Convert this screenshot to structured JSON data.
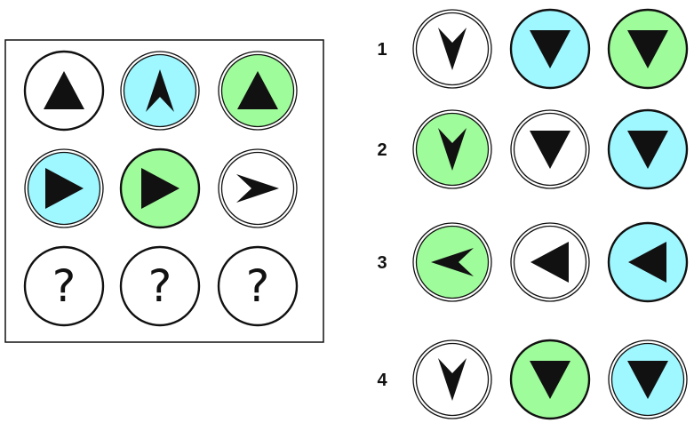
{
  "colors": {
    "white": "#ffffff",
    "cyan": "#9ff7ff",
    "green": "#9ffc9b",
    "ink": "#111111"
  },
  "matrix": {
    "rows": [
      [
        {
          "fill": "cyan-none",
          "color": "white",
          "border": "single",
          "icon": "triangle",
          "dir": "up"
        },
        {
          "color": "cyan",
          "border": "double",
          "icon": "chevron",
          "dir": "up"
        },
        {
          "color": "green",
          "border": "double",
          "icon": "triangle",
          "dir": "up"
        }
      ],
      [
        {
          "color": "cyan",
          "border": "double",
          "icon": "triangle",
          "dir": "right"
        },
        {
          "color": "green",
          "border": "single",
          "icon": "triangle",
          "dir": "right"
        },
        {
          "color": "white",
          "border": "double",
          "icon": "chevron",
          "dir": "right"
        }
      ],
      [
        {
          "color": "white",
          "border": "single",
          "icon": "question",
          "dir": "none"
        },
        {
          "color": "white",
          "border": "single",
          "icon": "question",
          "dir": "none"
        },
        {
          "color": "white",
          "border": "single",
          "icon": "question",
          "dir": "none"
        }
      ]
    ],
    "question_mark": "?"
  },
  "options": [
    {
      "label": "1",
      "cells": [
        {
          "color": "white",
          "border": "double",
          "icon": "chevron",
          "dir": "down"
        },
        {
          "color": "cyan",
          "border": "single",
          "icon": "triangle",
          "dir": "down"
        },
        {
          "color": "green",
          "border": "single",
          "icon": "triangle",
          "dir": "down"
        }
      ]
    },
    {
      "label": "2",
      "cells": [
        {
          "color": "green",
          "border": "double",
          "icon": "chevron",
          "dir": "down"
        },
        {
          "color": "white",
          "border": "double",
          "icon": "triangle",
          "dir": "down"
        },
        {
          "color": "cyan",
          "border": "single",
          "icon": "triangle",
          "dir": "down"
        }
      ]
    },
    {
      "label": "3",
      "cells": [
        {
          "color": "green",
          "border": "double",
          "icon": "chevron",
          "dir": "left"
        },
        {
          "color": "white",
          "border": "double",
          "icon": "triangle",
          "dir": "left"
        },
        {
          "color": "cyan",
          "border": "single",
          "icon": "triangle",
          "dir": "left"
        }
      ]
    },
    {
      "label": "4",
      "cells": [
        {
          "color": "white",
          "border": "double",
          "icon": "chevron",
          "dir": "down"
        },
        {
          "color": "green",
          "border": "single",
          "icon": "triangle",
          "dir": "down"
        },
        {
          "color": "cyan",
          "border": "double",
          "icon": "triangle",
          "dir": "down"
        }
      ]
    }
  ]
}
